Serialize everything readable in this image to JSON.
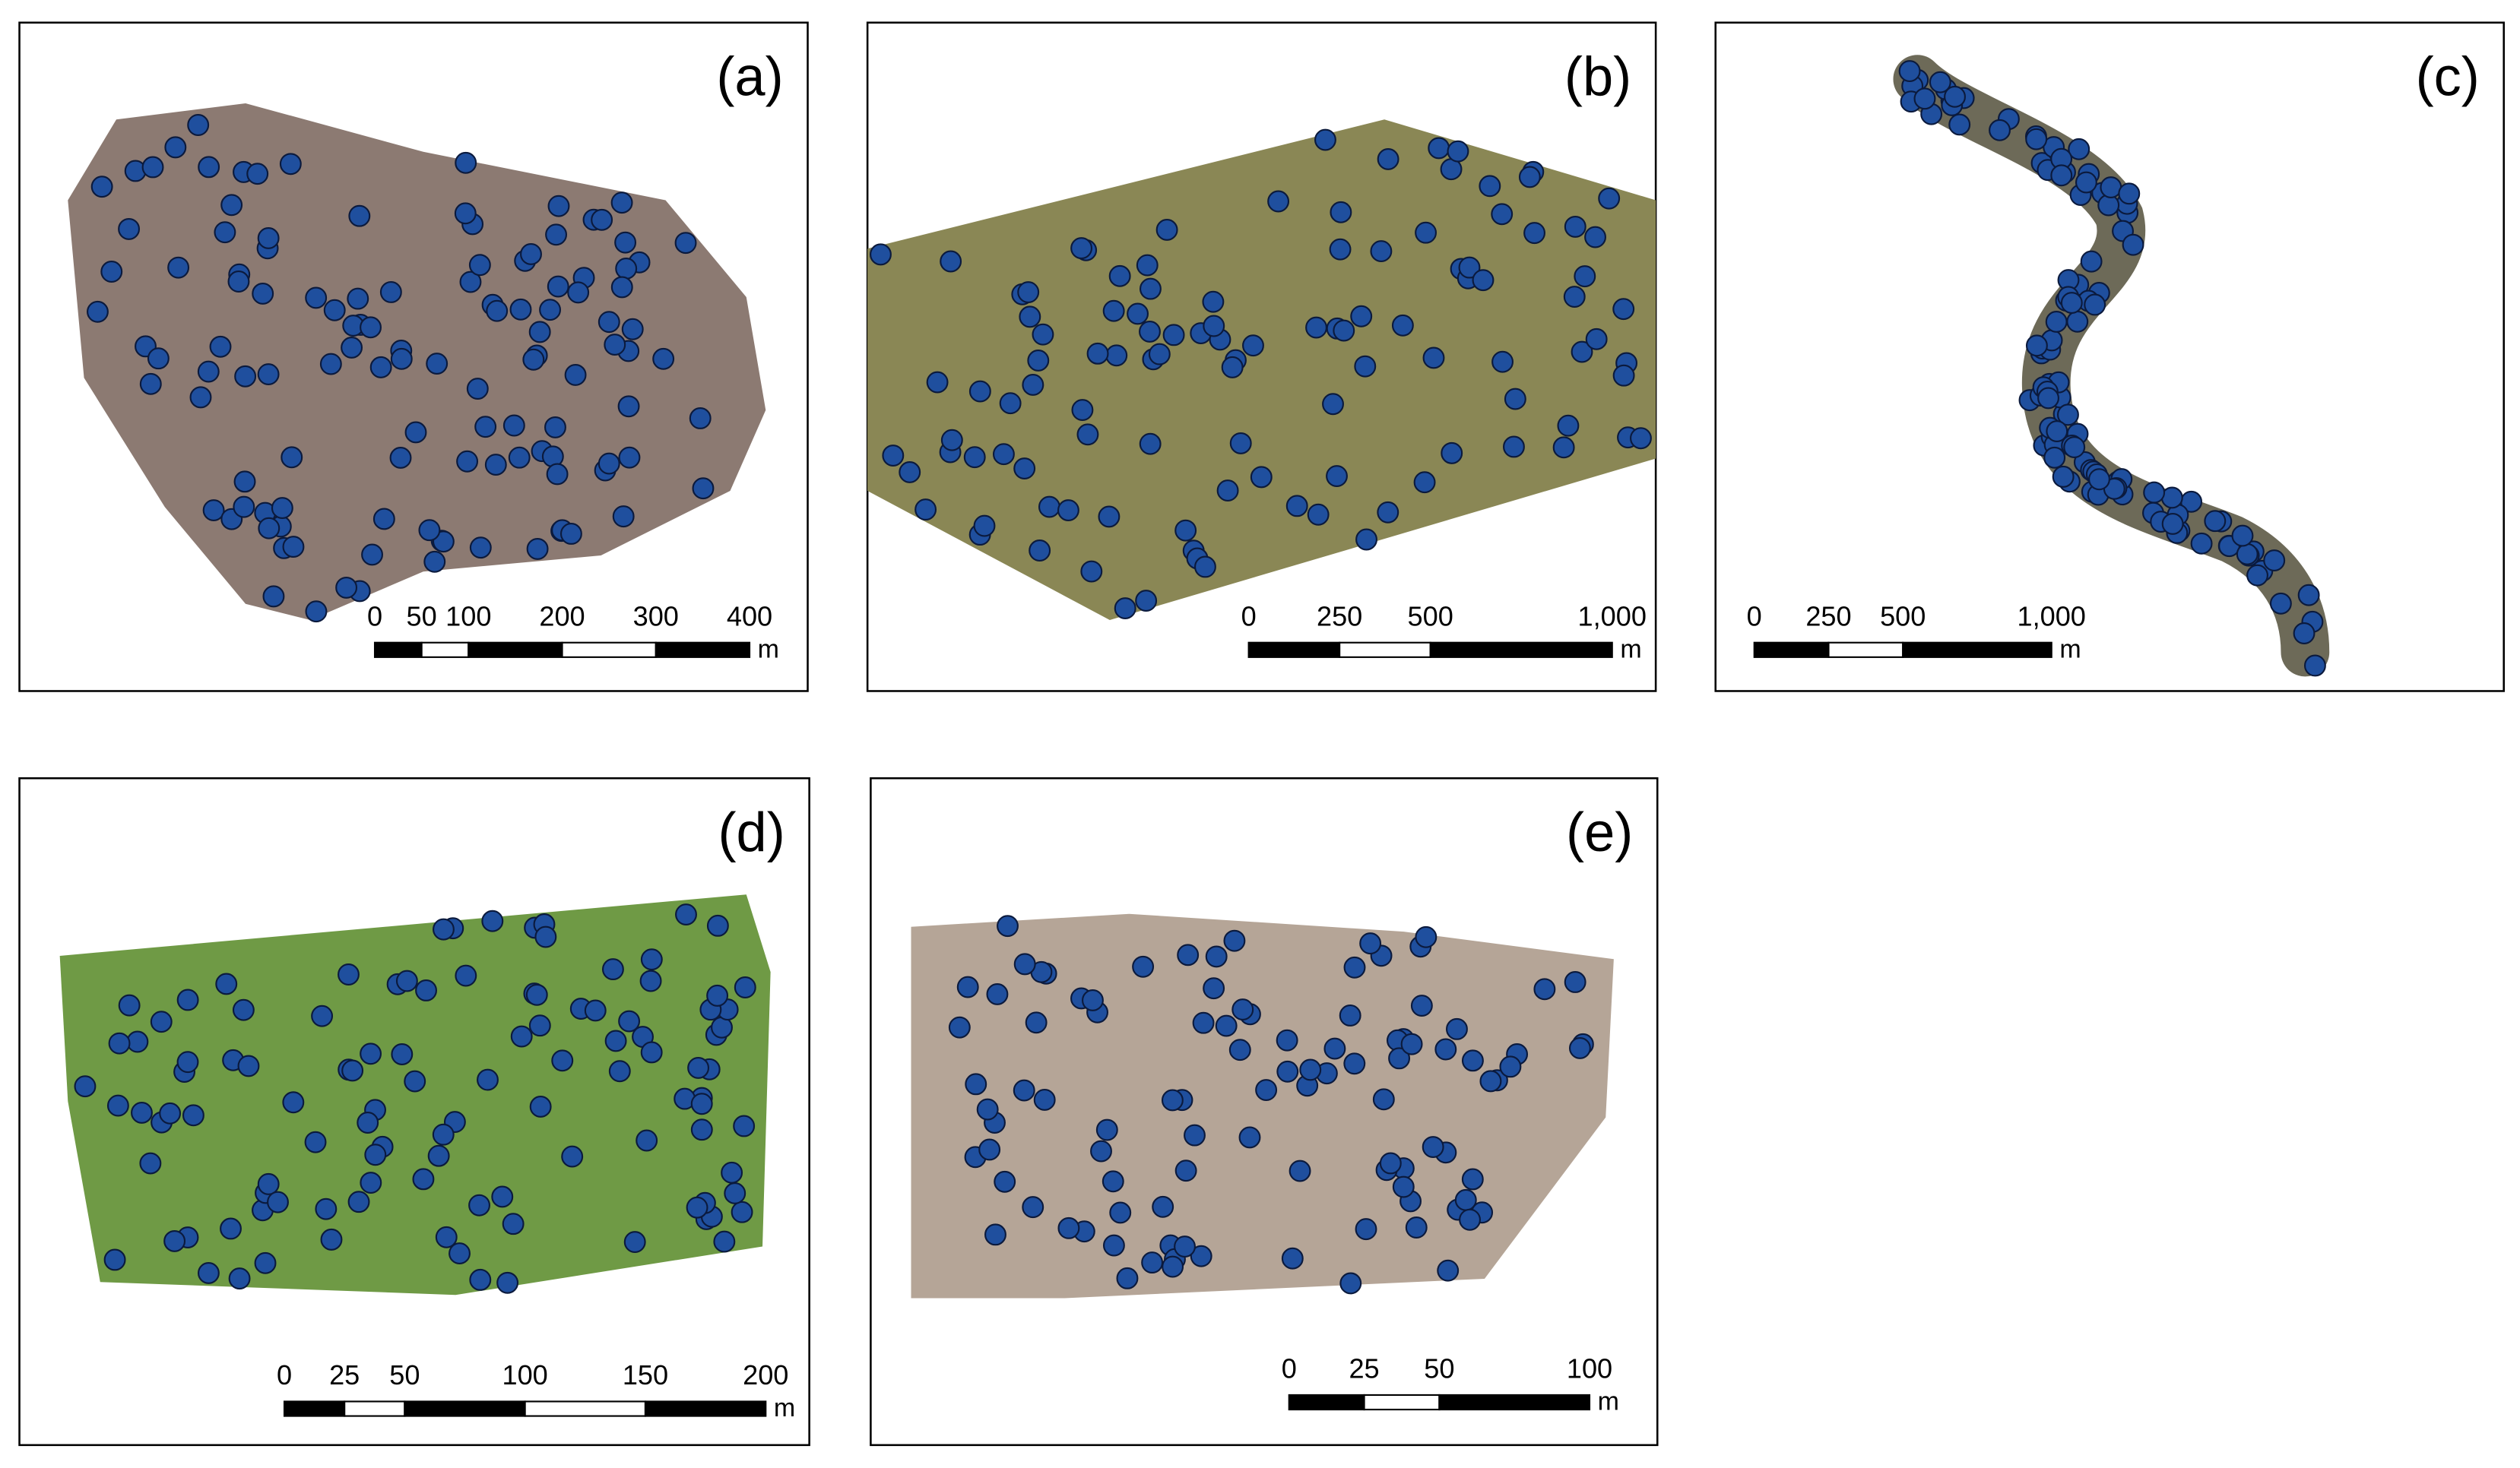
{
  "panels": [
    {
      "label": "(a)",
      "scale_bar": {
        "ticks": [
          0,
          50,
          100,
          200,
          300,
          400
        ],
        "unit": "m"
      }
    },
    {
      "label": "(b)",
      "scale_bar": {
        "ticks": [
          0,
          250,
          500,
          {
            "value": 1000,
            "label": "1,000"
          }
        ],
        "unit": "m"
      }
    },
    {
      "label": "(c)",
      "scale_bar": {
        "ticks": [
          0,
          250,
          500,
          {
            "value": 1000,
            "label": "1,000"
          }
        ],
        "unit": "m"
      }
    },
    {
      "label": "(d)",
      "scale_bar": {
        "ticks": [
          0,
          25,
          50,
          100,
          150,
          200
        ],
        "unit": "m"
      }
    },
    {
      "label": "(e)",
      "scale_bar": {
        "ticks": [
          0,
          25,
          50,
          100
        ],
        "unit": "m"
      }
    }
  ]
}
